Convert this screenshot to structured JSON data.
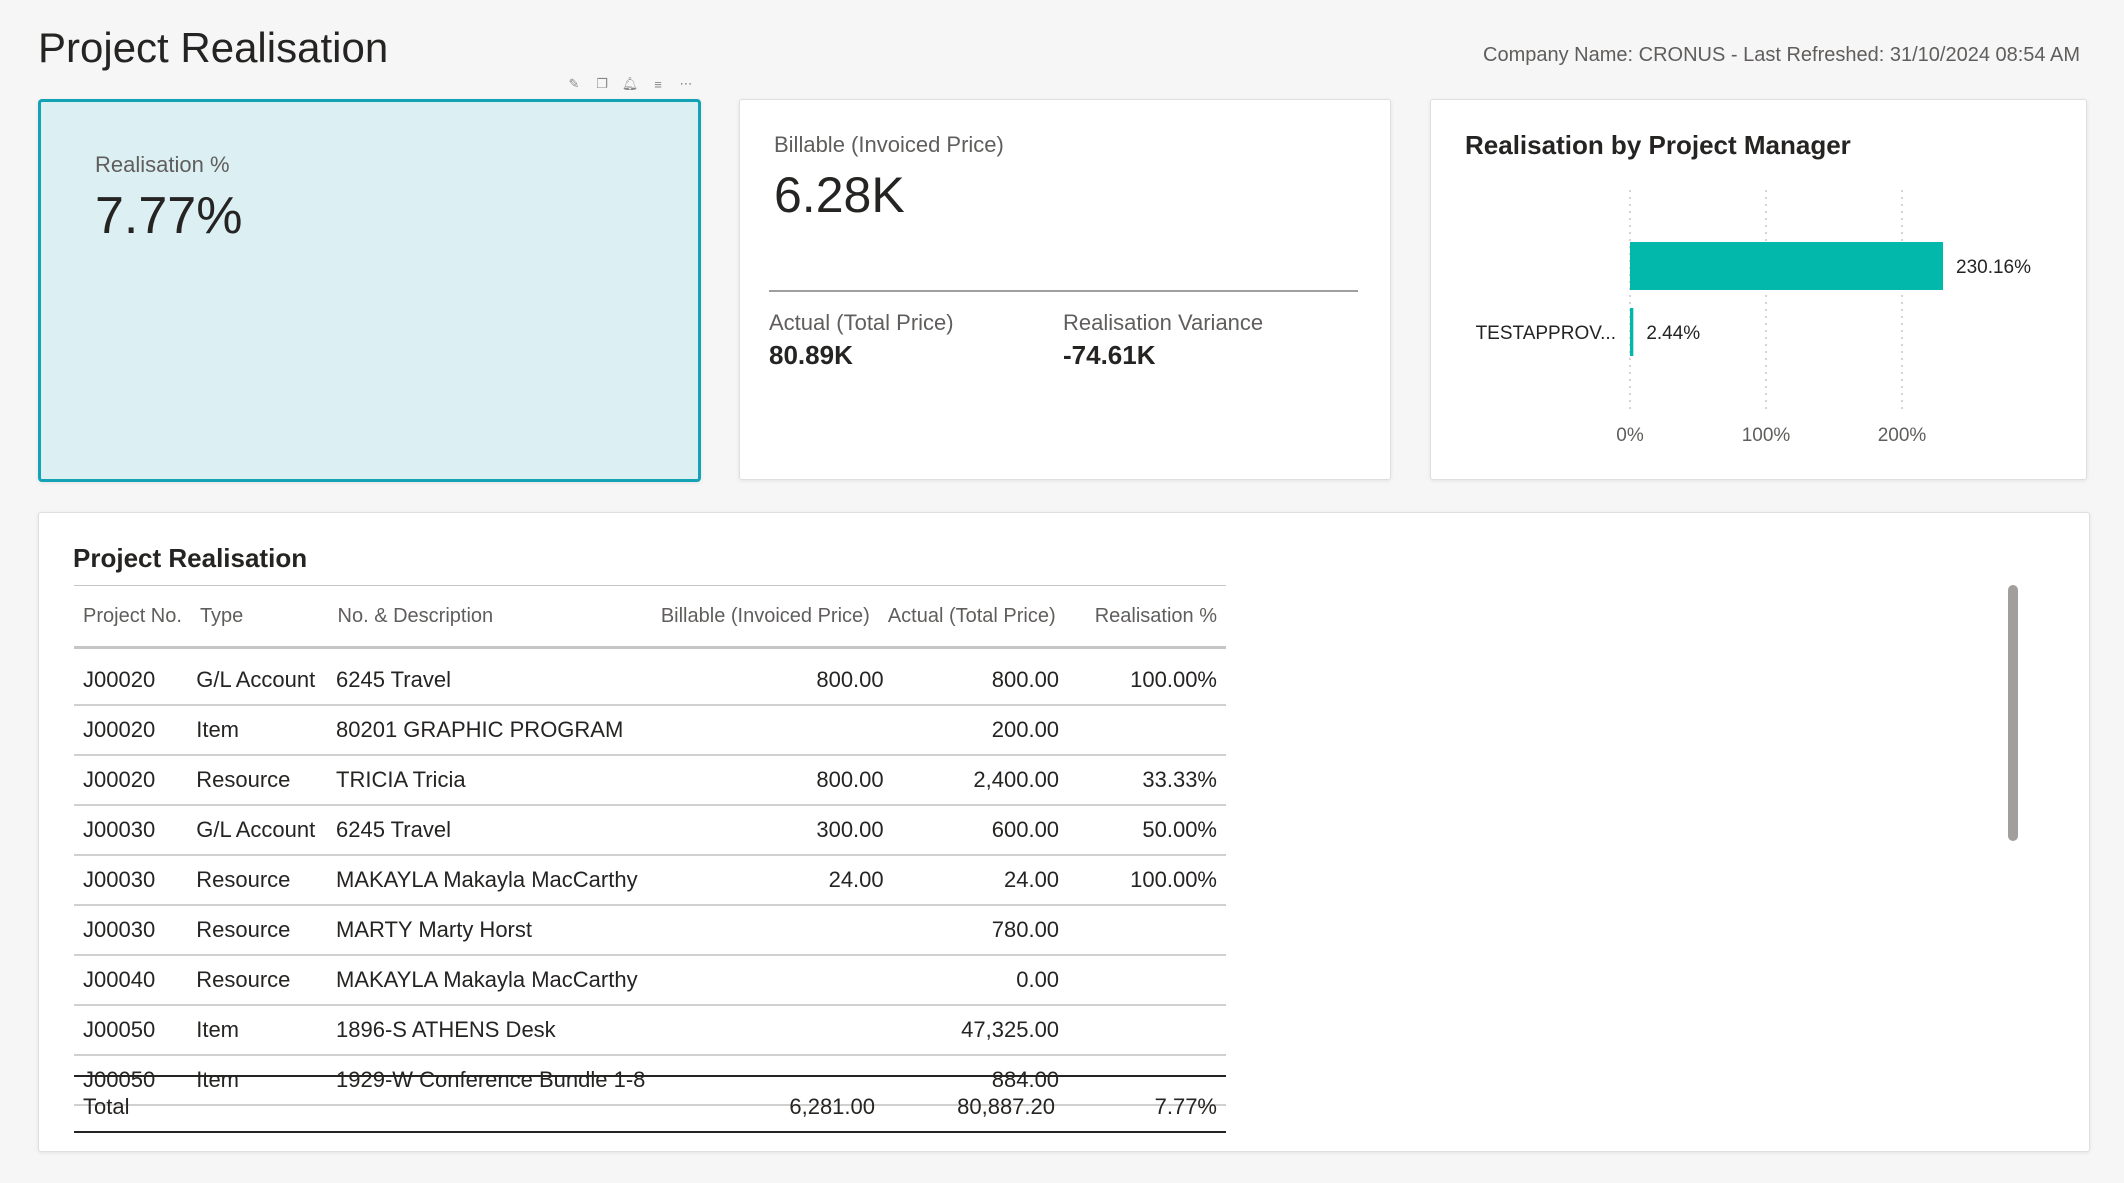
{
  "header": {
    "title": "Project Realisation",
    "company_info": "Company Name: CRONUS - Last Refreshed: 31/10/2024 08:54 AM"
  },
  "kpi_realisation": {
    "label": "Realisation %",
    "value": "7.77%"
  },
  "kpi_billable": {
    "label": "Billable (Invoiced Price)",
    "value": "6.28K",
    "actual_label": "Actual (Total Price)",
    "actual_value": "80.89K",
    "variance_label": "Realisation Variance",
    "variance_value": "-74.61K"
  },
  "chart_data": {
    "type": "bar",
    "orientation": "horizontal",
    "title": "Realisation by Project Manager",
    "categories": [
      "",
      "TESTAPPROV..."
    ],
    "values": [
      230.16,
      2.44
    ],
    "value_labels": [
      "230.16%",
      "2.44%"
    ],
    "x_ticks": [
      "0%",
      "100%",
      "200%"
    ],
    "xlim": [
      0,
      260
    ],
    "bar_color": "#01b8aa",
    "grid": true
  },
  "table": {
    "title": "Project Realisation",
    "columns": [
      "Project No.",
      "Type",
      "No. & Description",
      "Billable (Invoiced Price)",
      "Actual (Total Price)",
      "Realisation %"
    ],
    "rows": [
      [
        "J00020",
        "G/L Account",
        "6245 Travel",
        "800.00",
        "800.00",
        "100.00%"
      ],
      [
        "J00020",
        "Item",
        "80201 GRAPHIC PROGRAM",
        "",
        "200.00",
        ""
      ],
      [
        "J00020",
        "Resource",
        "TRICIA Tricia",
        "800.00",
        "2,400.00",
        "33.33%"
      ],
      [
        "J00030",
        "G/L Account",
        "6245 Travel",
        "300.00",
        "600.00",
        "50.00%"
      ],
      [
        "J00030",
        "Resource",
        "MAKAYLA Makayla MacCarthy",
        "24.00",
        "24.00",
        "100.00%"
      ],
      [
        "J00030",
        "Resource",
        "MARTY Marty Horst",
        "",
        "780.00",
        ""
      ],
      [
        "J00040",
        "Resource",
        "MAKAYLA Makayla MacCarthy",
        "",
        "0.00",
        ""
      ],
      [
        "J00050",
        "Item",
        "1896-S ATHENS Desk",
        "",
        "47,325.00",
        ""
      ],
      [
        "J00050",
        "Item",
        "1929-W Conference Bundle 1-8",
        "",
        "884.00",
        ""
      ]
    ],
    "total": [
      "Total",
      "",
      "",
      "6,281.00",
      "80,887.20",
      "7.77%"
    ]
  },
  "colors": {
    "accent": "#13a3b5",
    "kpi_background": "#dcf0f3",
    "bar": "#01b8aa"
  }
}
